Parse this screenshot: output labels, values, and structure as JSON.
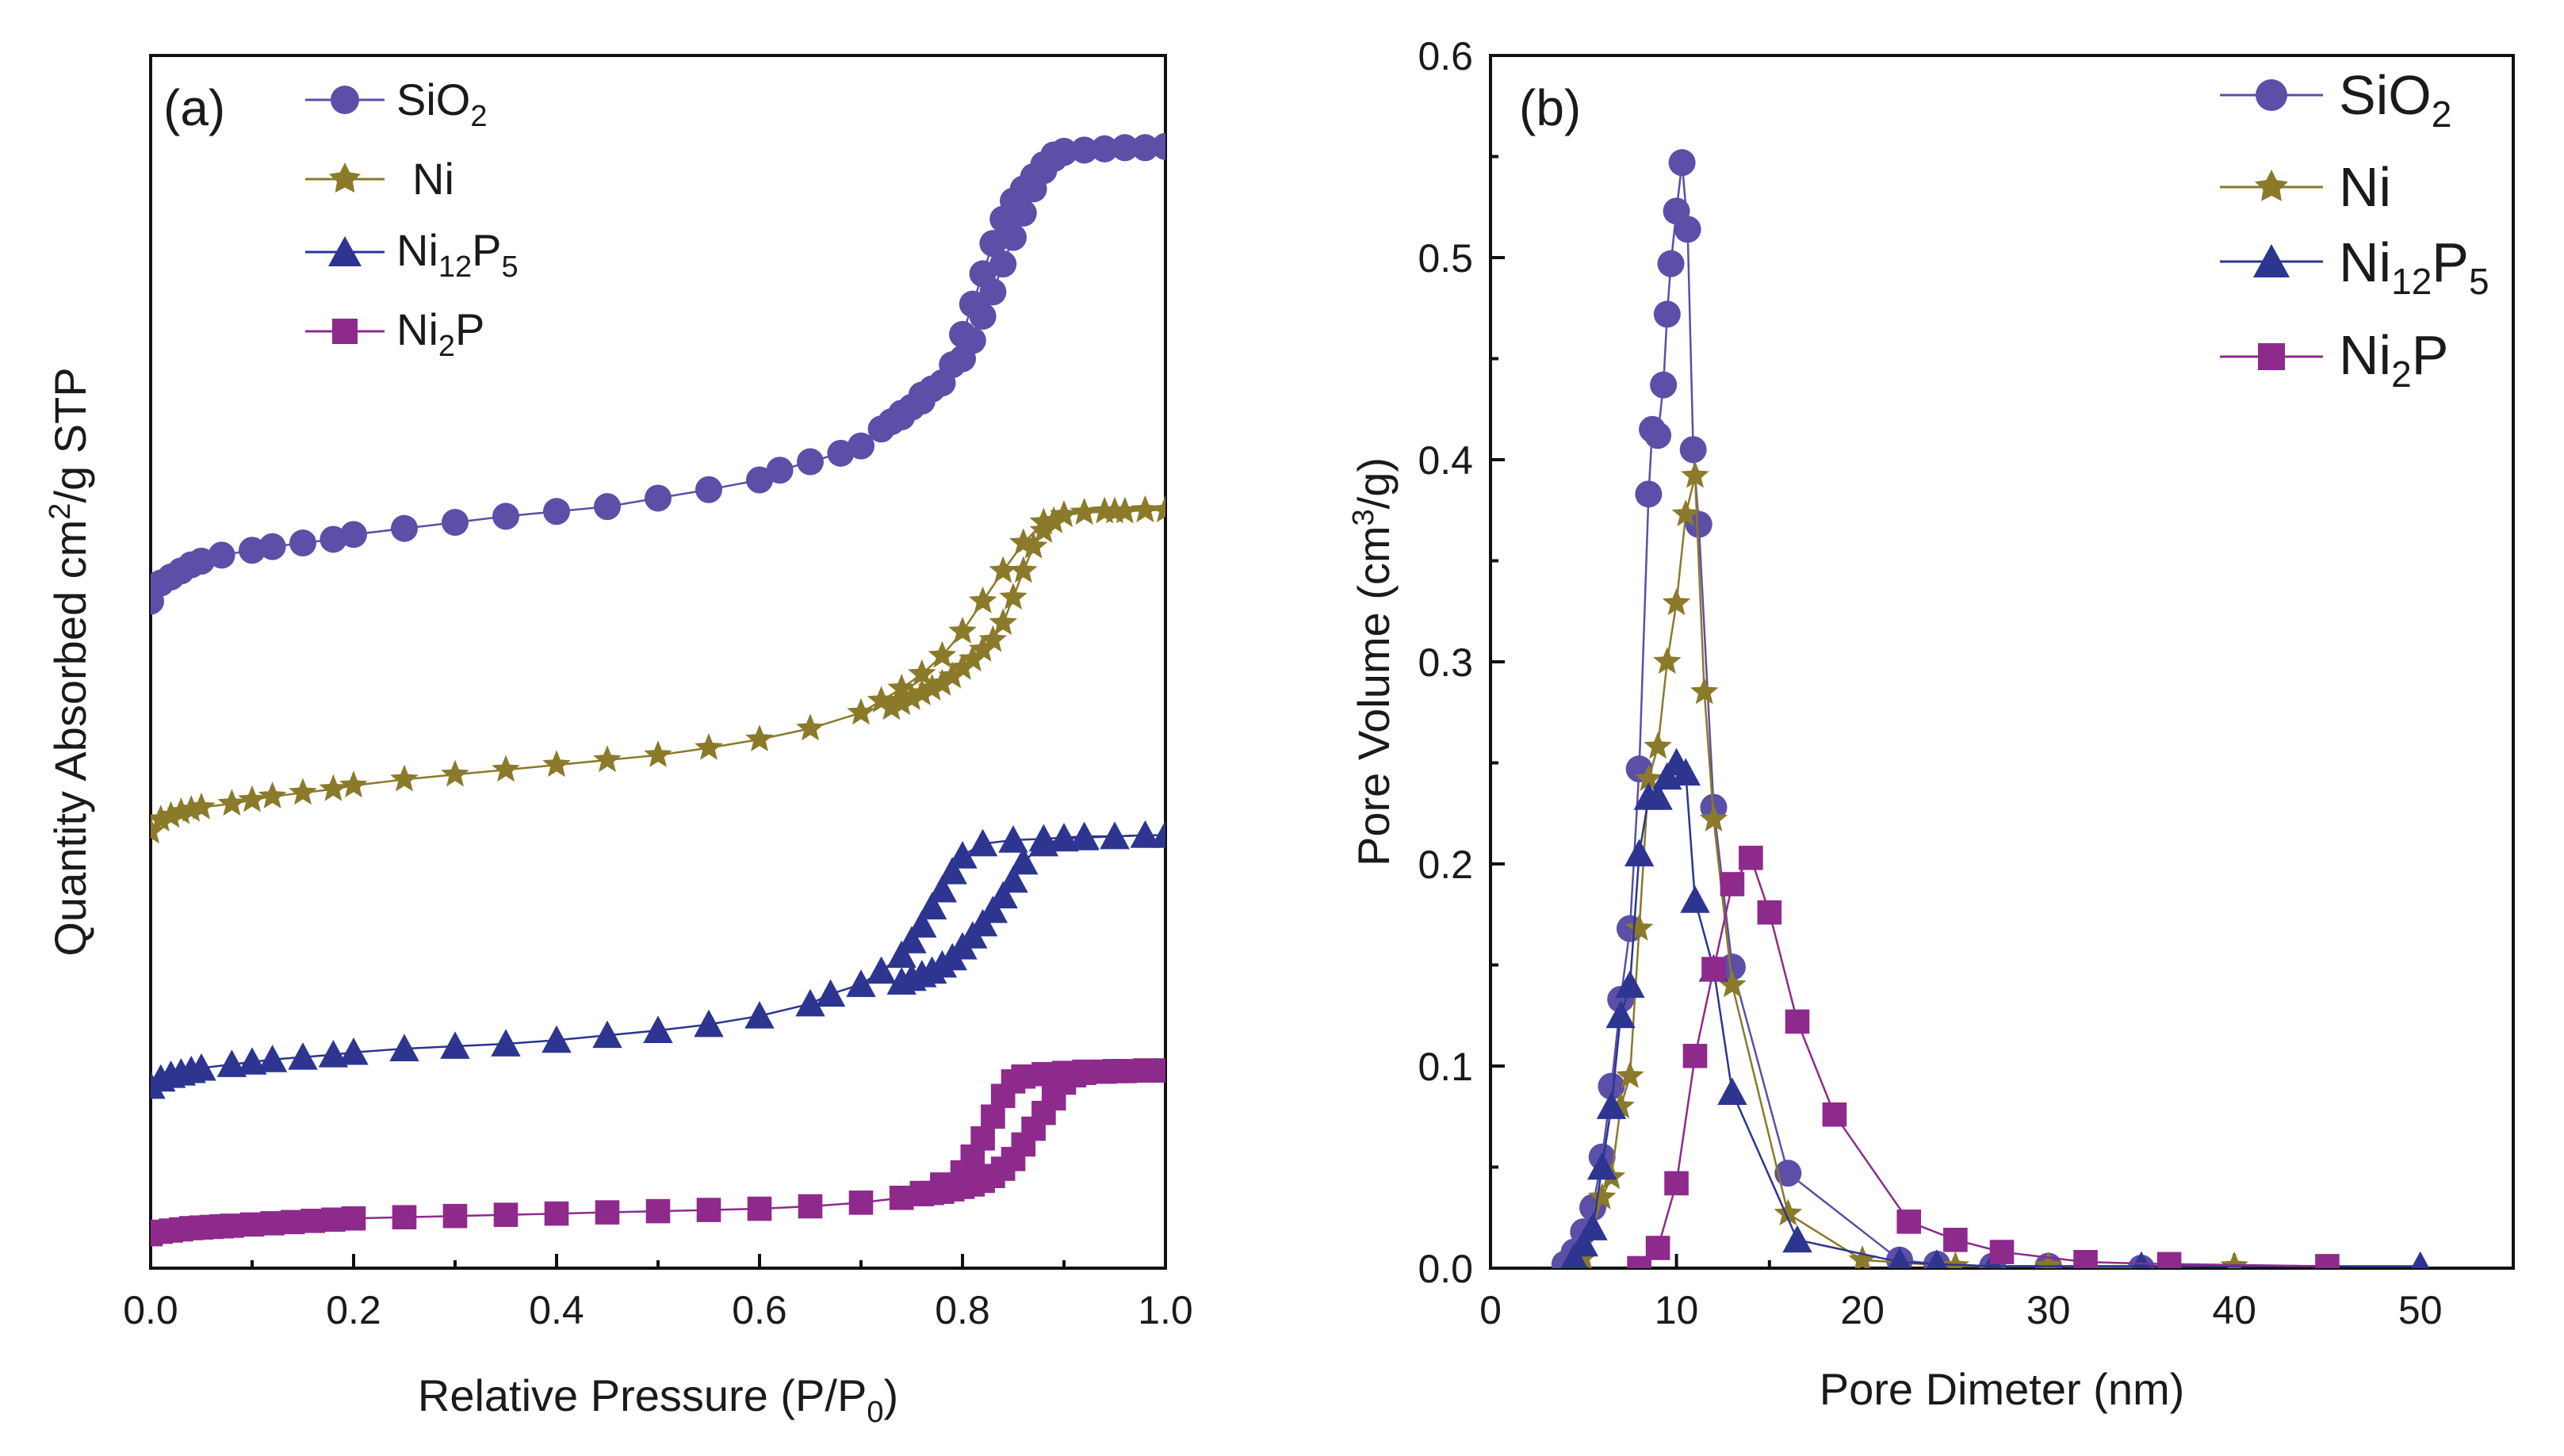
{
  "chart_data": [
    {
      "type": "scatter",
      "panel_label": "(a)",
      "xlabel_main": "Relative Pressure (P/P",
      "xlabel_sub": "0",
      "xlabel_end": ")",
      "ylabel_main": "Quantity Absorbed cm",
      "ylabel_sup": "2",
      "ylabel_end": "/g STP",
      "xlim": [
        0.0,
        1.0
      ],
      "ylim": [
        0,
        100
      ],
      "y_ticks_shown": false,
      "x_ticks": [
        "0.0",
        "0.2",
        "0.4",
        "0.6",
        "0.8",
        "1.0"
      ],
      "legend": [
        {
          "name": "SiO",
          "sub": "2",
          "marker": "circle",
          "color": "#5b4fa8"
        },
        {
          "name": "Ni",
          "sub": "",
          "marker": "star",
          "color": "#8a7a2a"
        },
        {
          "name": "Ni",
          "sub": "12",
          "name2": "P",
          "sub2": "5",
          "marker": "triangle",
          "color": "#2d3591"
        },
        {
          "name": "Ni",
          "sub": "2",
          "name2": "P",
          "sub2": "",
          "marker": "square",
          "color": "#8e2a8c"
        }
      ],
      "series": [
        {
          "name": "SiO2",
          "marker": "circle",
          "color": "#5b4fa8",
          "adsorption": {
            "x": [
              0.0,
              0.01,
              0.02,
              0.03,
              0.04,
              0.05,
              0.07,
              0.1,
              0.12,
              0.15,
              0.18,
              0.2,
              0.25,
              0.3,
              0.35,
              0.4,
              0.45,
              0.5,
              0.55,
              0.6,
              0.62,
              0.65,
              0.68,
              0.7,
              0.72,
              0.74,
              0.76,
              0.78,
              0.8,
              0.81,
              0.82,
              0.83,
              0.84,
              0.85,
              0.86,
              0.87,
              0.88,
              0.89,
              0.9,
              0.92,
              0.94,
              0.96,
              0.98,
              1.0
            ],
            "y": [
              55.0,
              56.5,
              57.0,
              57.5,
              58.0,
              58.3,
              58.8,
              59.2,
              59.5,
              59.8,
              60.1,
              60.5,
              61.0,
              61.5,
              62.0,
              62.4,
              62.8,
              63.5,
              64.2,
              65.0,
              65.8,
              66.5,
              67.2,
              67.8,
              69.2,
              70.2,
              71.5,
              73.0,
              75.0,
              76.5,
              78.5,
              80.5,
              82.8,
              85.0,
              87.0,
              89.0,
              90.5,
              91.5,
              92.0,
              92.2,
              92.3,
              92.4,
              92.4,
              92.5
            ]
          },
          "desorption": {
            "x": [
              1.0,
              0.98,
              0.96,
              0.94,
              0.92,
              0.9,
              0.89,
              0.88,
              0.87,
              0.86,
              0.85,
              0.84,
              0.83,
              0.82,
              0.81,
              0.8,
              0.79,
              0.78,
              0.77,
              0.76,
              0.75,
              0.74,
              0.73
            ],
            "y": [
              92.5,
              92.4,
              92.4,
              92.3,
              92.2,
              92.1,
              91.8,
              91.0,
              90.0,
              89.0,
              88.0,
              86.5,
              84.5,
              82.0,
              79.5,
              77.0,
              74.5,
              73.0,
              72.5,
              72.0,
              71.0,
              70.5,
              69.8
            ]
          }
        },
        {
          "name": "Ni",
          "marker": "star",
          "color": "#8a7a2a",
          "adsorption": {
            "x": [
              0.0,
              0.01,
              0.02,
              0.03,
              0.04,
              0.05,
              0.08,
              0.1,
              0.12,
              0.15,
              0.18,
              0.2,
              0.25,
              0.3,
              0.35,
              0.4,
              0.45,
              0.5,
              0.55,
              0.6,
              0.65,
              0.7,
              0.72,
              0.74,
              0.76,
              0.78,
              0.8,
              0.82,
              0.84,
              0.86,
              0.88,
              0.9,
              0.92,
              0.95,
              0.98,
              1.0
            ],
            "y": [
              36.0,
              37.0,
              37.3,
              37.6,
              37.8,
              38.0,
              38.3,
              38.6,
              38.9,
              39.2,
              39.5,
              39.8,
              40.3,
              40.7,
              41.1,
              41.5,
              41.9,
              42.3,
              42.9,
              43.6,
              44.5,
              45.8,
              46.8,
              47.8,
              49.0,
              50.5,
              52.5,
              55.0,
              57.5,
              59.8,
              61.5,
              62.1,
              62.3,
              62.4,
              62.5,
              62.5
            ]
          },
          "desorption": {
            "x": [
              1.0,
              0.98,
              0.96,
              0.94,
              0.92,
              0.9,
              0.89,
              0.88,
              0.87,
              0.86,
              0.85,
              0.84,
              0.83,
              0.82,
              0.81,
              0.8,
              0.79,
              0.78,
              0.77,
              0.76,
              0.75,
              0.74,
              0.73
            ],
            "y": [
              62.5,
              62.5,
              62.4,
              62.4,
              62.3,
              62.1,
              61.6,
              60.8,
              59.5,
              57.5,
              55.3,
              53.2,
              51.8,
              51.0,
              50.2,
              49.5,
              48.8,
              48.2,
              47.8,
              47.4,
              47.0,
              46.6,
              46.2
            ]
          }
        },
        {
          "name": "Ni12P5",
          "marker": "triangle",
          "color": "#2d3591",
          "adsorption": {
            "x": [
              0.0,
              0.01,
              0.02,
              0.03,
              0.04,
              0.05,
              0.08,
              0.1,
              0.12,
              0.15,
              0.18,
              0.2,
              0.25,
              0.3,
              0.35,
              0.4,
              0.45,
              0.5,
              0.55,
              0.6,
              0.65,
              0.67,
              0.7,
              0.72,
              0.74,
              0.75,
              0.76,
              0.77,
              0.78,
              0.79,
              0.8,
              0.82,
              0.85,
              0.88,
              0.9,
              0.92,
              0.95,
              0.98,
              1.0
            ],
            "y": [
              15.0,
              15.6,
              15.9,
              16.1,
              16.3,
              16.5,
              16.8,
              17.0,
              17.2,
              17.4,
              17.6,
              17.8,
              18.1,
              18.3,
              18.5,
              18.8,
              19.2,
              19.6,
              20.1,
              20.8,
              21.8,
              22.6,
              23.4,
              24.5,
              25.8,
              27.0,
              28.3,
              29.8,
              31.2,
              32.7,
              34.0,
              35.0,
              35.3,
              35.4,
              35.5,
              35.6,
              35.6,
              35.7,
              35.7
            ]
          },
          "desorption": {
            "x": [
              1.0,
              0.98,
              0.95,
              0.92,
              0.9,
              0.88,
              0.86,
              0.85,
              0.84,
              0.83,
              0.82,
              0.81,
              0.8,
              0.79,
              0.78,
              0.77,
              0.76,
              0.75,
              0.74
            ],
            "y": [
              35.7,
              35.7,
              35.6,
              35.5,
              35.4,
              35.0,
              33.5,
              32.0,
              30.7,
              29.5,
              28.4,
              27.4,
              26.5,
              25.6,
              25.0,
              24.5,
              24.2,
              23.9,
              23.6
            ]
          }
        },
        {
          "name": "Ni2P",
          "marker": "square",
          "color": "#8e2a8c",
          "adsorption": {
            "x": [
              0.0,
              0.01,
              0.02,
              0.03,
              0.04,
              0.05,
              0.06,
              0.07,
              0.08,
              0.1,
              0.12,
              0.14,
              0.16,
              0.18,
              0.2,
              0.25,
              0.3,
              0.35,
              0.4,
              0.45,
              0.5,
              0.55,
              0.6,
              0.65,
              0.7,
              0.74,
              0.76,
              0.78,
              0.8,
              0.81,
              0.82,
              0.83,
              0.84,
              0.85,
              0.86,
              0.88,
              0.9,
              0.92,
              0.95,
              0.98,
              1.0
            ],
            "y": [
              2.8,
              3.0,
              3.1,
              3.2,
              3.3,
              3.35,
              3.4,
              3.45,
              3.5,
              3.6,
              3.7,
              3.8,
              3.9,
              4.0,
              4.1,
              4.2,
              4.3,
              4.4,
              4.5,
              4.6,
              4.7,
              4.8,
              4.9,
              5.1,
              5.4,
              5.8,
              6.2,
              6.9,
              7.9,
              9.2,
              10.7,
              12.5,
              14.2,
              15.4,
              15.8,
              16.0,
              16.1,
              16.2,
              16.25,
              16.3,
              16.3
            ]
          },
          "desorption": {
            "x": [
              1.0,
              0.98,
              0.96,
              0.94,
              0.92,
              0.91,
              0.9,
              0.89,
              0.88,
              0.87,
              0.86,
              0.85,
              0.84,
              0.83,
              0.82,
              0.81,
              0.8,
              0.79,
              0.78,
              0.77,
              0.76
            ],
            "y": [
              16.3,
              16.3,
              16.25,
              16.2,
              16.1,
              15.9,
              15.3,
              14.0,
              12.8,
              11.5,
              10.2,
              9.0,
              8.2,
              7.6,
              7.2,
              6.9,
              6.7,
              6.5,
              6.3,
              6.2,
              6.1
            ]
          }
        }
      ]
    },
    {
      "type": "line",
      "panel_label": "(b)",
      "xlabel": "Pore Dimeter (nm)",
      "ylabel_main": "Pore Volume (cm",
      "ylabel_sup": "3",
      "ylabel_end": "/g)",
      "xlim": [
        0,
        55
      ],
      "ylim": [
        0,
        0.6
      ],
      "x_ticks": [
        "0",
        "10",
        "20",
        "30",
        "40",
        "50"
      ],
      "x_tick_values": [
        0,
        10,
        20,
        30,
        40,
        50
      ],
      "y_ticks": [
        "0.0",
        "0.1",
        "0.2",
        "0.3",
        "0.4",
        "0.5",
        "0.6"
      ],
      "y_tick_values": [
        0.0,
        0.1,
        0.2,
        0.3,
        0.4,
        0.5,
        0.6
      ],
      "legend": [
        {
          "name": "SiO",
          "sub": "2",
          "marker": "circle",
          "color": "#5b4fa8"
        },
        {
          "name": "Ni",
          "sub": "",
          "marker": "star",
          "color": "#8a7a2a"
        },
        {
          "name": "Ni",
          "sub": "12",
          "name2": "P",
          "sub2": "5",
          "marker": "triangle",
          "color": "#2d3591"
        },
        {
          "name": "Ni",
          "sub": "2",
          "name2": "P",
          "sub2": "",
          "marker": "square",
          "color": "#8e2a8c"
        }
      ],
      "series": [
        {
          "name": "SiO2",
          "marker": "circle",
          "color": "#5b4fa8",
          "x": [
            4.0,
            4.5,
            5.0,
            5.5,
            6.0,
            6.5,
            7.0,
            7.5,
            8.0,
            8.5,
            8.7,
            9.0,
            9.3,
            9.5,
            9.7,
            10.0,
            10.3,
            10.6,
            10.9,
            11.2,
            12.0,
            13.0,
            16.0,
            22.0,
            24.0,
            27.0,
            30.0,
            35.0
          ],
          "y": [
            0.002,
            0.008,
            0.018,
            0.03,
            0.055,
            0.09,
            0.133,
            0.168,
            0.247,
            0.383,
            0.415,
            0.412,
            0.437,
            0.472,
            0.497,
            0.523,
            0.547,
            0.514,
            0.405,
            0.368,
            0.228,
            0.149,
            0.047,
            0.004,
            0.002,
            0.001,
            0.001,
            0.0
          ]
        },
        {
          "name": "Ni",
          "marker": "star",
          "color": "#8a7a2a",
          "x": [
            5.0,
            6.0,
            6.5,
            7.0,
            7.5,
            8.0,
            8.5,
            9.0,
            9.5,
            10.0,
            10.5,
            11.0,
            11.5,
            12.0,
            13.0,
            16.0,
            20.0,
            25.0,
            30.0,
            40.0
          ],
          "y": [
            0.005,
            0.035,
            0.045,
            0.08,
            0.095,
            0.168,
            0.242,
            0.258,
            0.3,
            0.329,
            0.373,
            0.392,
            0.285,
            0.222,
            0.14,
            0.027,
            0.004,
            0.001,
            0.001,
            0.001
          ]
        },
        {
          "name": "Ni12P5",
          "marker": "triangle",
          "color": "#2d3591",
          "x": [
            4.5,
            5.0,
            5.5,
            6.0,
            6.5,
            7.0,
            7.5,
            8.0,
            8.5,
            9.0,
            9.5,
            10.0,
            10.5,
            11.0,
            12.0,
            13.0,
            16.5,
            22.0,
            24.0,
            27.0,
            35.0,
            50.0
          ],
          "y": [
            0.005,
            0.012,
            0.02,
            0.05,
            0.08,
            0.125,
            0.14,
            0.205,
            0.233,
            0.233,
            0.243,
            0.25,
            0.245,
            0.182,
            0.148,
            0.087,
            0.014,
            0.003,
            0.002,
            0.001,
            0.001,
            0.001
          ]
        },
        {
          "name": "Ni2P",
          "marker": "square",
          "color": "#8e2a8c",
          "x": [
            8.0,
            9.0,
            10.0,
            11.0,
            12.0,
            13.0,
            14.0,
            15.0,
            16.5,
            18.5,
            22.5,
            25.0,
            27.5,
            32.0,
            36.5,
            45.0
          ],
          "y": [
            0.0,
            0.01,
            0.042,
            0.105,
            0.148,
            0.19,
            0.203,
            0.176,
            0.122,
            0.076,
            0.023,
            0.014,
            0.008,
            0.003,
            0.002,
            0.001
          ]
        }
      ]
    }
  ]
}
